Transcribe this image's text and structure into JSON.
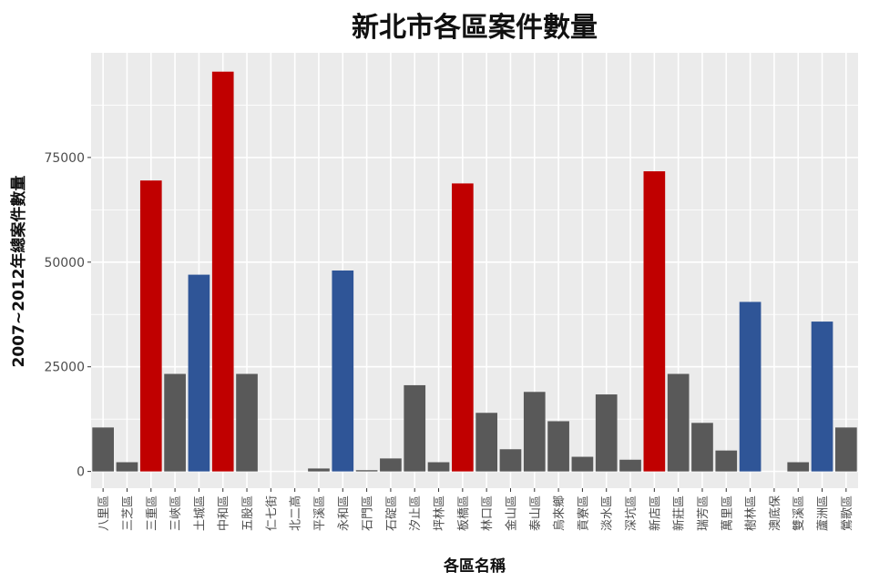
{
  "chart_data": {
    "type": "bar",
    "title": "新北市各區案件數量",
    "xlabel": "各區名稱",
    "ylabel": "2007~2012年總案件數量",
    "categories": [
      "八里區",
      "三芝區",
      "三重區",
      "三峽區",
      "土城區",
      "中和區",
      "五股區",
      "仁七街",
      "北二高",
      "平溪區",
      "永和區",
      "石門區",
      "石碇區",
      "汐止區",
      "坪林區",
      "板橋區",
      "林口區",
      "金山區",
      "泰山區",
      "烏來鄉",
      "貢寮區",
      "淡水區",
      "深坑區",
      "新店區",
      "新莊區",
      "瑞芳區",
      "萬里區",
      "樹林區",
      "澳底保",
      "雙溪區",
      "蘆洲區",
      "鶯歌區"
    ],
    "values": [
      10500,
      2200,
      69500,
      23300,
      47000,
      95500,
      23300,
      0,
      0,
      700,
      48000,
      300,
      3100,
      20600,
      2200,
      68800,
      14000,
      5300,
      19000,
      12000,
      3500,
      18400,
      2800,
      71700,
      23300,
      11600,
      5000,
      40500,
      0,
      2200,
      35800,
      10500
    ],
    "colors": [
      "#595959",
      "#595959",
      "#c00000",
      "#595959",
      "#2f5597",
      "#c00000",
      "#595959",
      "#595959",
      "#595959",
      "#595959",
      "#2f5597",
      "#595959",
      "#595959",
      "#595959",
      "#595959",
      "#c00000",
      "#595959",
      "#595959",
      "#595959",
      "#595959",
      "#595959",
      "#595959",
      "#595959",
      "#c00000",
      "#595959",
      "#595959",
      "#595959",
      "#2f5597",
      "#595959",
      "#595959",
      "#2f5597",
      "#595959"
    ],
    "yticks": [
      0,
      25000,
      50000,
      75000
    ],
    "ylim": [
      -4000,
      100000
    ],
    "grid": true,
    "panel_background": "#ebebeb"
  }
}
